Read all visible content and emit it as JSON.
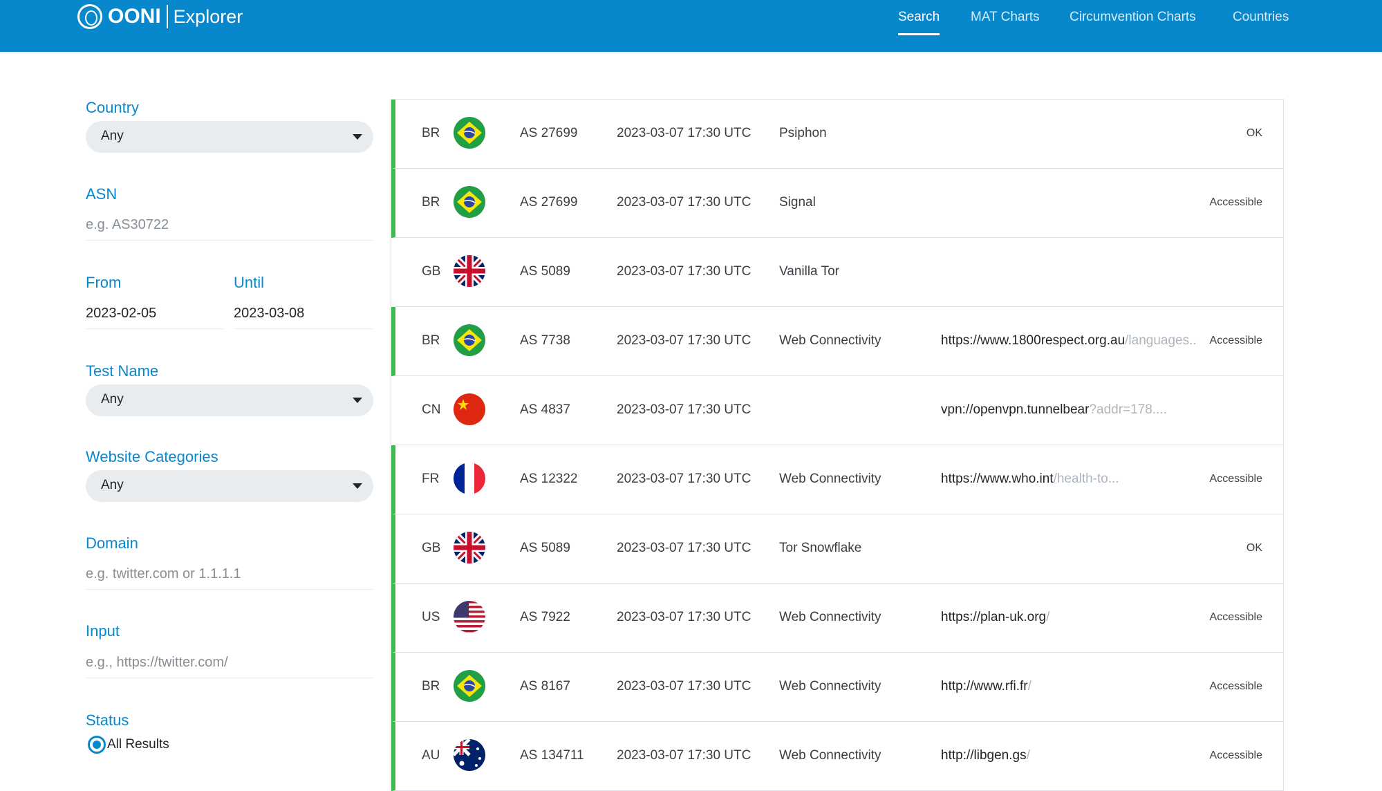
{
  "header": {
    "logo_brand": "OONI",
    "logo_product": "Explorer",
    "nav": [
      {
        "label": "Search",
        "active": true
      },
      {
        "label": "MAT Charts"
      },
      {
        "label": "Circumvention Charts"
      },
      {
        "label": "Countries"
      }
    ]
  },
  "filters": {
    "country": {
      "label": "Country",
      "value": "Any"
    },
    "asn": {
      "label": "ASN",
      "placeholder": "e.g. AS30722"
    },
    "from": {
      "label": "From",
      "value": "2023-02-05"
    },
    "until": {
      "label": "Until",
      "value": "2023-03-08"
    },
    "test_name": {
      "label": "Test Name",
      "value": "Any"
    },
    "website_categories": {
      "label": "Website Categories",
      "value": "Any"
    },
    "domain": {
      "label": "Domain",
      "placeholder": "e.g. twitter.com or 1.1.1.1"
    },
    "input": {
      "label": "Input",
      "placeholder": "e.g., https://twitter.com/"
    },
    "status": {
      "label": "Status",
      "selected": "All Results"
    }
  },
  "colors": {
    "brand": "#0888cc",
    "ok_border": "#3fb950"
  },
  "results": [
    {
      "cc": "BR",
      "flag": "brazil",
      "asn": "AS 27699",
      "date": "2023-03-07 17:30 UTC",
      "test": "Psiphon",
      "url_main": "",
      "url_rest": "",
      "status": "OK",
      "border": true
    },
    {
      "cc": "BR",
      "flag": "brazil",
      "asn": "AS 27699",
      "date": "2023-03-07 17:30 UTC",
      "test": "Signal",
      "url_main": "",
      "url_rest": "",
      "status": "Accessible",
      "border": true
    },
    {
      "cc": "GB",
      "flag": "uk",
      "asn": "AS 5089",
      "date": "2023-03-07 17:30 UTC",
      "test": "Vanilla Tor",
      "url_main": "",
      "url_rest": "",
      "status": "",
      "border": false
    },
    {
      "cc": "BR",
      "flag": "brazil",
      "asn": "AS 7738",
      "date": "2023-03-07 17:30 UTC",
      "test": "Web Connectivity",
      "url_main": "https://www.1800respect.org.au",
      "url_rest": "/languages..",
      "status": "Accessible",
      "border": true
    },
    {
      "cc": "CN",
      "flag": "china",
      "asn": "AS 4837",
      "date": "2023-03-07 17:30 UTC",
      "test": "",
      "url_main": "vpn://openvpn.tunnelbear",
      "url_rest": "?addr=178....",
      "status": "",
      "border": false
    },
    {
      "cc": "FR",
      "flag": "france",
      "asn": "AS 12322",
      "date": "2023-03-07 17:30 UTC",
      "test": "Web Connectivity",
      "url_main": "https://www.who.int",
      "url_rest": "/health-to...",
      "status": "Accessible",
      "border": true
    },
    {
      "cc": "GB",
      "flag": "uk",
      "asn": "AS 5089",
      "date": "2023-03-07 17:30 UTC",
      "test": "Tor Snowflake",
      "url_main": "",
      "url_rest": "",
      "status": "OK",
      "border": true
    },
    {
      "cc": "US",
      "flag": "usa",
      "asn": "AS 7922",
      "date": "2023-03-07 17:30 UTC",
      "test": "Web Connectivity",
      "url_main": "https://plan-uk.org",
      "url_rest": "/",
      "status": "Accessible",
      "border": true
    },
    {
      "cc": "BR",
      "flag": "brazil",
      "asn": "AS 8167",
      "date": "2023-03-07 17:30 UTC",
      "test": "Web Connectivity",
      "url_main": "http://www.rfi.fr",
      "url_rest": "/",
      "status": "Accessible",
      "border": true
    },
    {
      "cc": "AU",
      "flag": "australia",
      "asn": "AS 134711",
      "date": "2023-03-07 17:30 UTC",
      "test": "Web Connectivity",
      "url_main": "http://libgen.gs",
      "url_rest": "/",
      "status": "Accessible",
      "border": true
    }
  ]
}
